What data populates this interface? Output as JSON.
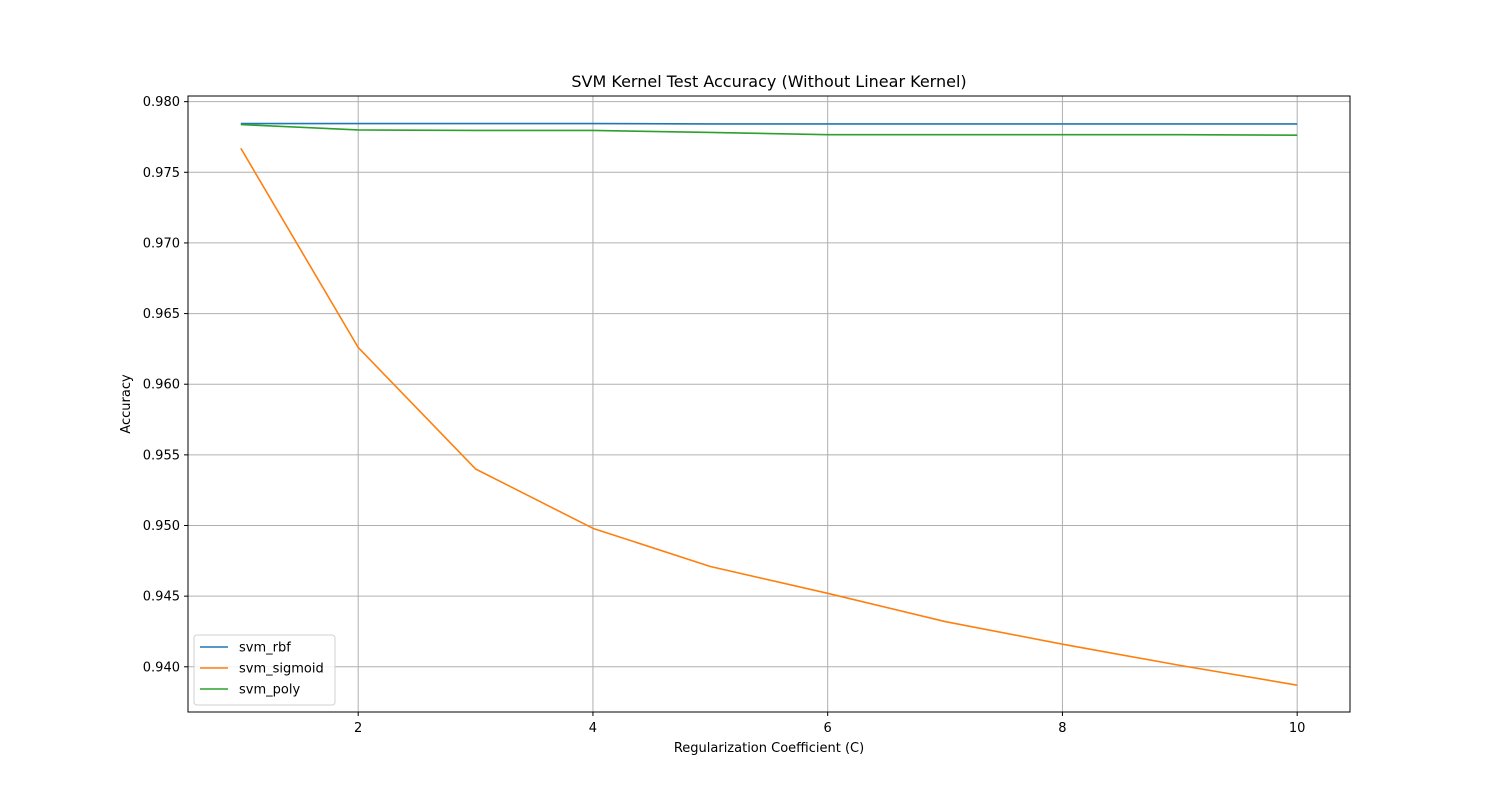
{
  "chart_data": {
    "type": "line",
    "title": "SVM Kernel Test Accuracy (Without Linear Kernel)",
    "xlabel": "Regularization Coefficient (C)",
    "ylabel": "Accuracy",
    "xlim": [
      0.55,
      10.45
    ],
    "ylim": [
      0.9368,
      0.9804
    ],
    "xticks": [
      2,
      4,
      6,
      8,
      10
    ],
    "yticks": [
      0.94,
      0.945,
      0.95,
      0.955,
      0.96,
      0.965,
      0.97,
      0.975,
      0.98
    ],
    "ytick_labels": [
      "0.940",
      "0.945",
      "0.950",
      "0.955",
      "0.960",
      "0.965",
      "0.970",
      "0.975",
      "0.980"
    ],
    "grid": true,
    "legend_position": "lower-left",
    "x": [
      1,
      2,
      3,
      4,
      5,
      6,
      7,
      8,
      9,
      10
    ],
    "series": [
      {
        "name": "svm_rbf",
        "color": "#1f77b4",
        "values": [
          0.97845,
          0.97845,
          0.97845,
          0.97845,
          0.97842,
          0.97842,
          0.97842,
          0.97842,
          0.97842,
          0.97842
        ]
      },
      {
        "name": "svm_sigmoid",
        "color": "#ff7f0e",
        "values": [
          0.9767,
          0.9626,
          0.954,
          0.9498,
          0.9471,
          0.9452,
          0.9432,
          0.9416,
          0.9401,
          0.9387
        ]
      },
      {
        "name": "svm_poly",
        "color": "#2ca02c",
        "values": [
          0.97838,
          0.978,
          0.97796,
          0.97796,
          0.97782,
          0.97766,
          0.97766,
          0.97766,
          0.97766,
          0.97763
        ]
      }
    ]
  }
}
